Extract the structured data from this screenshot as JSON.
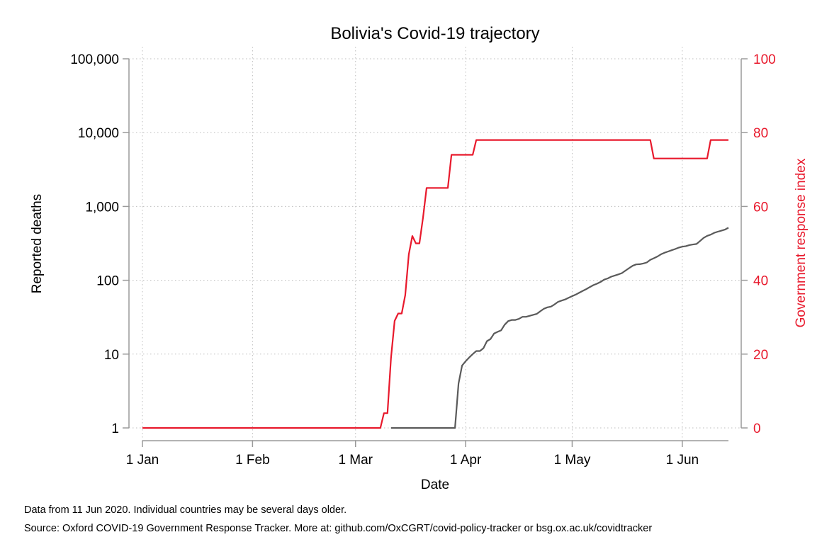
{
  "chart_data": {
    "type": "line",
    "title": "Bolivia's Covid-19 trajectory",
    "xlabel": "Date",
    "ylabel": "Reported deaths",
    "y2label": "Government response index",
    "xlim": [
      "2020-01-01",
      "2020-06-11"
    ],
    "x_ticks": [
      {
        "date": "2020-01-01",
        "label": "1 Jan"
      },
      {
        "date": "2020-02-01",
        "label": "1 Feb"
      },
      {
        "date": "2020-03-01",
        "label": "1 Mar"
      },
      {
        "date": "2020-04-01",
        "label": "1 Apr"
      },
      {
        "date": "2020-05-01",
        "label": "1 May"
      },
      {
        "date": "2020-06-01",
        "label": "1 Jun"
      }
    ],
    "y_scale": "log",
    "ylim": [
      1,
      100000
    ],
    "y_ticks": [
      {
        "value": 1,
        "label": "1"
      },
      {
        "value": 10,
        "label": "10"
      },
      {
        "value": 100,
        "label": "100"
      },
      {
        "value": 1000,
        "label": "1,000"
      },
      {
        "value": 10000,
        "label": "10,000"
      },
      {
        "value": 100000,
        "label": "100,000"
      }
    ],
    "y2lim": [
      0,
      100
    ],
    "y2_ticks": [
      {
        "value": 0,
        "label": "0"
      },
      {
        "value": 20,
        "label": "20"
      },
      {
        "value": 40,
        "label": "40"
      },
      {
        "value": 60,
        "label": "60"
      },
      {
        "value": 80,
        "label": "80"
      },
      {
        "value": 100,
        "label": "100"
      }
    ],
    "grid": true,
    "colors": {
      "deaths": "#5a5a5a",
      "response": "#e8192c",
      "axis": "#9a9a9a",
      "grid": "#bdbdbd"
    },
    "series": [
      {
        "axis": "left",
        "color": "#5a5a5a",
        "points": [
          [
            "2020-03-11",
            1
          ],
          [
            "2020-03-29",
            1
          ],
          [
            "2020-03-30",
            4
          ],
          [
            "2020-03-31",
            7
          ],
          [
            "2020-04-01",
            8
          ],
          [
            "2020-04-02",
            9
          ],
          [
            "2020-04-03",
            10
          ],
          [
            "2020-04-04",
            11
          ],
          [
            "2020-04-05",
            11
          ],
          [
            "2020-04-06",
            12
          ],
          [
            "2020-04-07",
            15
          ],
          [
            "2020-04-08",
            16
          ],
          [
            "2020-04-09",
            19
          ],
          [
            "2020-04-10",
            20
          ],
          [
            "2020-04-11",
            21
          ],
          [
            "2020-04-12",
            25
          ],
          [
            "2020-04-13",
            28
          ],
          [
            "2020-04-14",
            29
          ],
          [
            "2020-04-15",
            29
          ],
          [
            "2020-04-16",
            30
          ],
          [
            "2020-04-17",
            32
          ],
          [
            "2020-04-18",
            32
          ],
          [
            "2020-04-19",
            33
          ],
          [
            "2020-04-20",
            34
          ],
          [
            "2020-04-21",
            35
          ],
          [
            "2020-04-22",
            38
          ],
          [
            "2020-04-23",
            41
          ],
          [
            "2020-04-24",
            43
          ],
          [
            "2020-04-25",
            44
          ],
          [
            "2020-04-26",
            47
          ],
          [
            "2020-04-27",
            51
          ],
          [
            "2020-04-28",
            53
          ],
          [
            "2020-04-29",
            55
          ],
          [
            "2020-04-30",
            58
          ],
          [
            "2020-05-01",
            61
          ],
          [
            "2020-05-02",
            64
          ],
          [
            "2020-05-03",
            68
          ],
          [
            "2020-05-04",
            72
          ],
          [
            "2020-05-05",
            76
          ],
          [
            "2020-05-06",
            81
          ],
          [
            "2020-05-07",
            86
          ],
          [
            "2020-05-08",
            90
          ],
          [
            "2020-05-09",
            95
          ],
          [
            "2020-05-10",
            102
          ],
          [
            "2020-05-11",
            106
          ],
          [
            "2020-05-12",
            112
          ],
          [
            "2020-05-13",
            116
          ],
          [
            "2020-05-14",
            120
          ],
          [
            "2020-05-15",
            125
          ],
          [
            "2020-05-16",
            135
          ],
          [
            "2020-05-17",
            146
          ],
          [
            "2020-05-18",
            157
          ],
          [
            "2020-05-19",
            164
          ],
          [
            "2020-05-20",
            165
          ],
          [
            "2020-05-21",
            169
          ],
          [
            "2020-05-22",
            174
          ],
          [
            "2020-05-23",
            189
          ],
          [
            "2020-05-24",
            199
          ],
          [
            "2020-05-25",
            210
          ],
          [
            "2020-05-26",
            225
          ],
          [
            "2020-05-27",
            236
          ],
          [
            "2020-05-28",
            245
          ],
          [
            "2020-05-29",
            255
          ],
          [
            "2020-05-30",
            265
          ],
          [
            "2020-05-31",
            277
          ],
          [
            "2020-06-01",
            285
          ],
          [
            "2020-06-02",
            290
          ],
          [
            "2020-06-03",
            300
          ],
          [
            "2020-06-04",
            305
          ],
          [
            "2020-06-05",
            310
          ],
          [
            "2020-06-06",
            340
          ],
          [
            "2020-06-07",
            375
          ],
          [
            "2020-06-08",
            400
          ],
          [
            "2020-06-09",
            415
          ],
          [
            "2020-06-10",
            440
          ],
          [
            "2020-06-11",
            455
          ],
          [
            "2020-06-12",
            470
          ],
          [
            "2020-06-13",
            485
          ],
          [
            "2020-06-14",
            515
          ]
        ]
      },
      {
        "axis": "right",
        "color": "#e8192c",
        "points": [
          [
            "2020-01-01",
            0
          ],
          [
            "2020-03-08",
            0
          ],
          [
            "2020-03-09",
            4
          ],
          [
            "2020-03-10",
            4
          ],
          [
            "2020-03-11",
            19
          ],
          [
            "2020-03-12",
            29
          ],
          [
            "2020-03-13",
            31
          ],
          [
            "2020-03-14",
            31
          ],
          [
            "2020-03-15",
            36
          ],
          [
            "2020-03-16",
            47
          ],
          [
            "2020-03-17",
            52
          ],
          [
            "2020-03-18",
            50
          ],
          [
            "2020-03-19",
            50
          ],
          [
            "2020-03-20",
            57
          ],
          [
            "2020-03-21",
            65
          ],
          [
            "2020-03-27",
            65
          ],
          [
            "2020-03-28",
            74
          ],
          [
            "2020-04-03",
            74
          ],
          [
            "2020-04-04",
            78
          ],
          [
            "2020-05-23",
            78
          ],
          [
            "2020-05-24",
            73
          ],
          [
            "2020-06-08",
            73
          ],
          [
            "2020-06-09",
            78
          ],
          [
            "2020-06-14",
            78
          ]
        ]
      }
    ]
  },
  "notes": {
    "line1": "Data from 11 Jun 2020. Individual countries may be several days older.",
    "line2": "Source: Oxford COVID-19 Government Response Tracker. More at: github.com/OxCGRT/covid-policy-tracker or bsg.ox.ac.uk/covidtracker"
  }
}
